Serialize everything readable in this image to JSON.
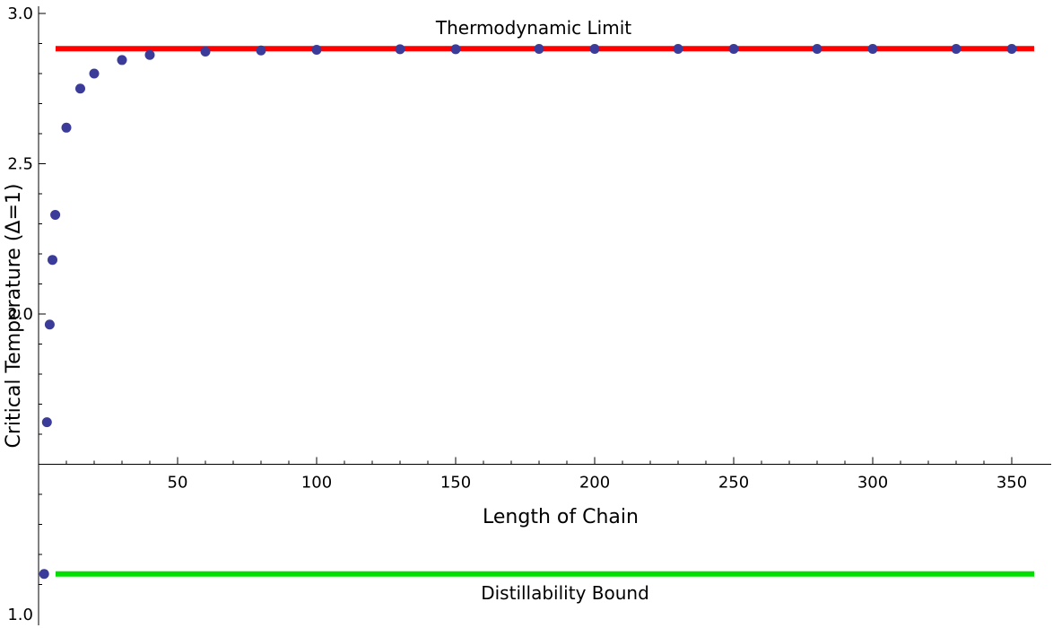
{
  "chart_data": {
    "type": "scatter",
    "title": "",
    "xlabel": "Length of Chain",
    "ylabel": "Critical Temperature (Δ=1)",
    "xlim": [
      0,
      352
    ],
    "ylim": [
      1.0,
      3.0
    ],
    "x_ticks": [
      50,
      100,
      150,
      200,
      250,
      300,
      350
    ],
    "x_tick_labels": [
      "50",
      "100",
      "150",
      "200",
      "250",
      "300",
      "350"
    ],
    "y_ticks": [
      1.0,
      2.0,
      2.5,
      3.0
    ],
    "y_tick_labels": [
      "1.0",
      "2.0",
      "2.5",
      "3.0"
    ],
    "grid": false,
    "points": [
      {
        "x": 2,
        "y": 1.135
      },
      {
        "x": 3,
        "y": 1.64
      },
      {
        "x": 4,
        "y": 1.965
      },
      {
        "x": 5,
        "y": 2.18
      },
      {
        "x": 6,
        "y": 2.33
      },
      {
        "x": 10,
        "y": 2.62
      },
      {
        "x": 15,
        "y": 2.75
      },
      {
        "x": 20,
        "y": 2.8
      },
      {
        "x": 30,
        "y": 2.845
      },
      {
        "x": 40,
        "y": 2.862
      },
      {
        "x": 60,
        "y": 2.873
      },
      {
        "x": 80,
        "y": 2.877
      },
      {
        "x": 100,
        "y": 2.879
      },
      {
        "x": 130,
        "y": 2.881
      },
      {
        "x": 150,
        "y": 2.881
      },
      {
        "x": 180,
        "y": 2.882
      },
      {
        "x": 200,
        "y": 2.882
      },
      {
        "x": 230,
        "y": 2.882
      },
      {
        "x": 250,
        "y": 2.882
      },
      {
        "x": 280,
        "y": 2.882
      },
      {
        "x": 300,
        "y": 2.882
      },
      {
        "x": 330,
        "y": 2.882
      },
      {
        "x": 350,
        "y": 2.882
      }
    ],
    "point_color": "#3b3b9a",
    "reference_lines": [
      {
        "label": "Thermodynamic Limit",
        "y": 2.883,
        "color": "#ff0000"
      },
      {
        "label": "Distillability Bound",
        "y": 1.135,
        "color": "#00e000"
      }
    ],
    "x_axis_at_y": 1.5
  }
}
